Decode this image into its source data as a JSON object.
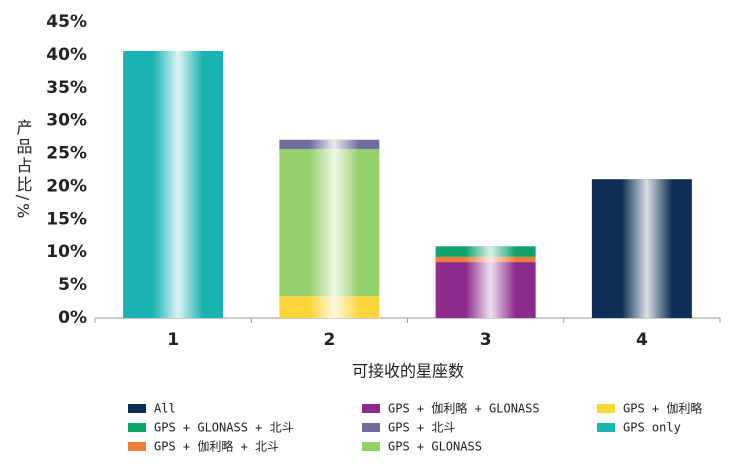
{
  "chart_data": {
    "type": "stacked-bar",
    "xlabel": "可接收的星座数",
    "ylabel": "产品占比/%",
    "categories": [
      "1",
      "2",
      "3",
      "4"
    ],
    "ylim": [
      0,
      45
    ],
    "yticks": [
      {
        "value": 0,
        "label": "0%"
      },
      {
        "value": 5,
        "label": "5%"
      },
      {
        "value": 10,
        "label": "10%"
      },
      {
        "value": 15,
        "label": "15%"
      },
      {
        "value": 20,
        "label": "20%"
      },
      {
        "value": 25,
        "label": "25%"
      },
      {
        "value": 30,
        "label": "30%"
      },
      {
        "value": 35,
        "label": "35%"
      },
      {
        "value": 40,
        "label": "40%"
      },
      {
        "value": 45,
        "label": "45%"
      }
    ],
    "series": [
      {
        "name": "All",
        "color": "#0d2f55",
        "values": [
          null,
          null,
          null,
          21.1
        ]
      },
      {
        "name": "GPS + GLONASS + 北斗",
        "color": "#12a36a",
        "values": [
          null,
          null,
          1.6,
          null
        ]
      },
      {
        "name": "GPS + 伽利略 + 北斗",
        "color": "#f07f3c",
        "values": [
          null,
          null,
          0.8,
          null
        ]
      },
      {
        "name": "GPS + 伽利略 + GLONASS",
        "color": "#8c2a8e",
        "values": [
          null,
          null,
          8.5,
          null
        ]
      },
      {
        "name": "GPS + 北斗",
        "color": "#6f6c9c",
        "values": [
          null,
          1.4,
          null,
          null
        ]
      },
      {
        "name": "GPS + GLONASS",
        "color": "#94cf6a",
        "values": [
          null,
          22.4,
          null,
          null
        ]
      },
      {
        "name": "GPS + 伽利略",
        "color": "#fcd53a",
        "values": [
          null,
          3.3,
          null,
          null
        ]
      },
      {
        "name": "GPS only",
        "color": "#1ab3b3",
        "values": [
          40.6,
          null,
          null,
          null
        ]
      }
    ]
  }
}
